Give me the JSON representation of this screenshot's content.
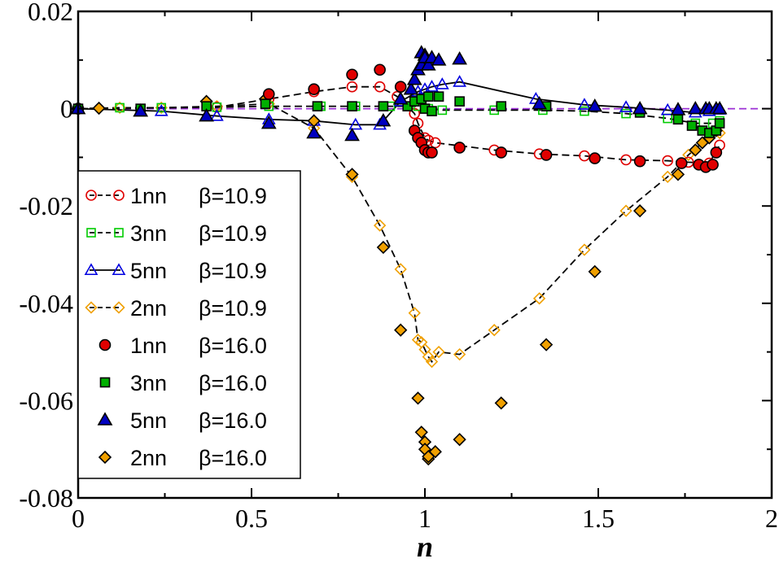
{
  "chart_data": {
    "type": "scatter",
    "xlabel": "n",
    "ylabel": "",
    "xlim": [
      0,
      2
    ],
    "ylim": [
      -0.08,
      0.02
    ],
    "xticks": [
      0,
      0.5,
      1,
      1.5,
      2
    ],
    "xtick_labels": [
      "0",
      "0.5",
      "1",
      "1.5",
      "2"
    ],
    "yticks": [
      -0.08,
      -0.06,
      -0.04,
      -0.02,
      0,
      0.02
    ],
    "ytick_labels": [
      "-0.08",
      "-0.06",
      "-0.04",
      "-0.02",
      "0",
      "0.02"
    ],
    "reference_line": {
      "y": 0,
      "color": "#9b30d6",
      "style": "dashed"
    },
    "legend_position": "left-middle",
    "series": [
      {
        "name": "1nn  β=10.9",
        "legend_label": "1nn",
        "beta_label": "β=10.9",
        "marker": "circle",
        "filled": false,
        "color": "#e00000",
        "line": "dashed",
        "x": [
          0.0,
          0.4,
          0.55,
          0.68,
          0.79,
          0.87,
          0.92,
          0.97,
          0.98,
          1.0,
          1.01,
          1.03,
          1.2,
          1.33,
          1.46,
          1.58,
          1.7,
          1.76,
          1.82,
          1.85
        ],
        "y": [
          0.0,
          0.0003,
          0.002,
          0.0035,
          0.0045,
          0.0045,
          0.0025,
          -0.001,
          -0.003,
          -0.006,
          -0.0065,
          -0.007,
          -0.0085,
          -0.0093,
          -0.0097,
          -0.0105,
          -0.0107,
          -0.011,
          -0.0112,
          -0.0075
        ]
      },
      {
        "name": "3nn  β=10.9",
        "legend_label": "3nn",
        "beta_label": "β=10.9",
        "marker": "square",
        "filled": false,
        "color": "#00cc00",
        "line": "dashed",
        "x": [
          0.0,
          0.12,
          0.24,
          0.4,
          0.55,
          0.7,
          0.8,
          0.9,
          0.98,
          1.01,
          1.05,
          1.2,
          1.34,
          1.46,
          1.58,
          1.7,
          1.78,
          1.83,
          1.85
        ],
        "y": [
          0.0,
          0.0002,
          0.0002,
          0.0003,
          0.0005,
          0.0005,
          0.0005,
          0.0005,
          0.0005,
          0.0,
          -0.0003,
          -0.0003,
          -0.0003,
          -0.0005,
          -0.001,
          -0.002,
          -0.003,
          -0.003,
          -0.0025
        ]
      },
      {
        "name": "5nn  β=10.9",
        "legend_label": "5nn",
        "beta_label": "β=10.9",
        "marker": "triangle",
        "filled": false,
        "color": "#0000e0",
        "line": "solid",
        "x": [
          0.0,
          0.24,
          0.4,
          0.55,
          0.68,
          0.8,
          0.87,
          0.93,
          0.98,
          1.0,
          1.02,
          1.05,
          1.1,
          1.32,
          1.46,
          1.58,
          1.7,
          1.78,
          1.82,
          1.85
        ],
        "y": [
          0.0,
          -0.0005,
          -0.0015,
          -0.0022,
          -0.0025,
          -0.0033,
          -0.0033,
          0.0015,
          0.0035,
          0.004,
          0.0045,
          0.005,
          0.0055,
          0.002,
          0.0008,
          0.0003,
          -0.0003,
          -0.0008,
          -0.0005,
          -0.0002
        ]
      },
      {
        "name": "2nn  β=10.9",
        "legend_label": "2nn",
        "beta_label": "β=10.9",
        "marker": "diamond",
        "filled": false,
        "color": "#f0a000",
        "line": "dashed",
        "x": [
          0.0,
          0.12,
          0.24,
          0.4,
          0.55,
          0.68,
          0.79,
          0.87,
          0.93,
          0.97,
          0.98,
          0.99,
          1.0,
          1.01,
          1.02,
          1.04,
          1.1,
          1.2,
          1.33,
          1.46,
          1.58,
          1.7,
          1.76,
          1.8,
          1.85
        ],
        "y": [
          0.0,
          0.0002,
          0.0002,
          0.0005,
          0.001,
          -0.004,
          -0.014,
          -0.024,
          -0.033,
          -0.042,
          -0.0475,
          -0.048,
          -0.0495,
          -0.051,
          -0.052,
          -0.05,
          -0.0505,
          -0.0455,
          -0.039,
          -0.029,
          -0.021,
          -0.014,
          -0.0095,
          -0.007,
          -0.005
        ]
      },
      {
        "name": "1nn  β=16.0",
        "legend_label": "1nn",
        "beta_label": "β=16.0",
        "marker": "circle",
        "filled": true,
        "color": "#e00000",
        "line": "none",
        "x": [
          0.0,
          0.55,
          0.68,
          0.79,
          0.87,
          0.93,
          0.97,
          0.98,
          0.99,
          1.0,
          1.01,
          1.02,
          1.1,
          1.22,
          1.35,
          1.49,
          1.62,
          1.74,
          1.79,
          1.81,
          1.83,
          1.84
        ],
        "y": [
          0.0,
          0.003,
          0.004,
          0.007,
          0.008,
          0.0045,
          -0.0045,
          -0.006,
          -0.007,
          -0.0085,
          -0.009,
          -0.009,
          -0.008,
          -0.009,
          -0.0095,
          -0.0102,
          -0.0108,
          -0.0112,
          -0.0115,
          -0.012,
          -0.0115,
          -0.009
        ]
      },
      {
        "name": "3nn  β=16.0",
        "legend_label": "3nn",
        "beta_label": "β=16.0",
        "marker": "square",
        "filled": true,
        "color": "#00b000",
        "line": "none",
        "x": [
          0.0,
          0.18,
          0.37,
          0.54,
          0.69,
          0.79,
          0.88,
          0.95,
          0.97,
          0.99,
          1.0,
          1.01,
          1.02,
          1.04,
          1.1,
          1.22,
          1.35,
          1.62,
          1.73,
          1.77,
          1.8,
          1.82,
          1.84,
          1.85
        ],
        "y": [
          0.0,
          0.0,
          0.0005,
          0.001,
          0.0005,
          0.0005,
          0.0005,
          0.0005,
          0.0015,
          0.002,
          0.0,
          0.0025,
          -0.0005,
          0.0025,
          0.0015,
          0.0005,
          0.0005,
          -0.0008,
          -0.0022,
          -0.0035,
          -0.0045,
          -0.005,
          -0.0045,
          -0.003
        ]
      },
      {
        "name": "5nn  β=16.0",
        "legend_label": "5nn",
        "beta_label": "β=16.0",
        "marker": "triangle",
        "filled": true,
        "color": "#0000c0",
        "line": "none",
        "x": [
          0.0,
          0.18,
          0.37,
          0.55,
          0.68,
          0.79,
          0.88,
          0.93,
          0.96,
          0.97,
          0.98,
          0.99,
          0.99,
          1.0,
          1.0,
          1.01,
          1.02,
          1.04,
          1.1,
          1.33,
          1.49,
          1.62,
          1.73,
          1.78,
          1.81,
          1.82,
          1.84,
          1.85
        ],
        "y": [
          0.0,
          -0.0005,
          -0.0015,
          -0.003,
          -0.005,
          -0.0055,
          -0.0025,
          0.002,
          0.004,
          0.006,
          0.008,
          0.0115,
          0.009,
          0.011,
          0.0105,
          0.009,
          0.0105,
          0.01,
          0.0102,
          0.001,
          0.0005,
          0.0,
          -0.0002,
          0.0,
          0.0,
          0.0,
          0.0,
          0.0
        ]
      },
      {
        "name": "2nn  β=16.0",
        "legend_label": "2nn",
        "beta_label": "β=16.0",
        "marker": "diamond",
        "filled": true,
        "color": "#f0a000",
        "line": "none",
        "x": [
          0.0,
          0.06,
          0.37,
          0.54,
          0.68,
          0.79,
          0.88,
          0.93,
          0.98,
          0.99,
          1.0,
          1.0,
          1.01,
          1.01,
          1.03,
          1.1,
          1.22,
          1.35,
          1.49,
          1.62,
          1.73,
          1.78,
          1.8,
          1.82,
          1.84
        ],
        "y": [
          0.0,
          0.0001,
          0.0015,
          0.002,
          -0.0025,
          -0.0135,
          -0.0285,
          -0.0455,
          -0.0595,
          -0.0665,
          -0.0685,
          -0.07,
          -0.072,
          -0.0715,
          -0.0705,
          -0.068,
          -0.0605,
          -0.0485,
          -0.0335,
          -0.021,
          -0.0135,
          -0.0085,
          -0.007,
          -0.006,
          -0.0045
        ]
      }
    ]
  }
}
